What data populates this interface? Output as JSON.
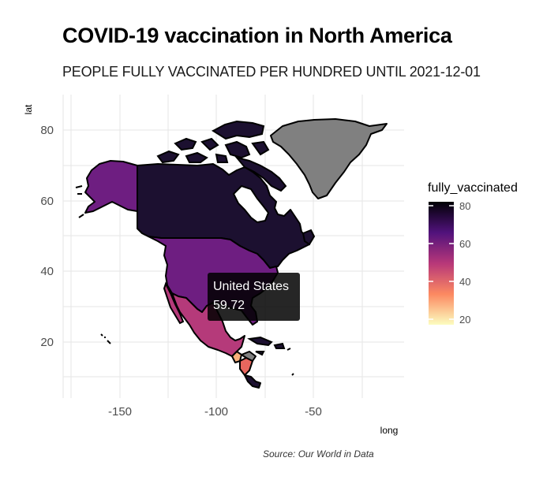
{
  "title": "COVID-19 vaccination in North America",
  "subtitle": "PEOPLE FULLY VACCINATED PER HUNDRED UNTIL 2021-12-01",
  "caption": "Source: Our World in Data",
  "axes": {
    "x_title": "long",
    "y_title": "lat",
    "x_ticks": [
      "-150",
      "-100",
      "-50"
    ],
    "y_ticks": [
      "80",
      "60",
      "40",
      "20"
    ]
  },
  "legend": {
    "title": "fully_vaccinated",
    "ticks": [
      "80",
      "60",
      "40",
      "20"
    ],
    "colors": [
      "#fcfdbf",
      "#fc8961",
      "#b73779",
      "#51127c",
      "#000004"
    ],
    "range": [
      17,
      83
    ]
  },
  "tooltip": {
    "country": "United States",
    "value": "59.72"
  },
  "colors": {
    "canada": "#1c1030",
    "usa": "#6e1e81",
    "alaska": "#6e1e81",
    "mexico": "#b53a7a",
    "greenland": "#808080",
    "central_america_light": "#f9b07b",
    "central_america_mid": "#e8665e",
    "caribbean": "#1c1030",
    "no_data": "#808080"
  }
}
